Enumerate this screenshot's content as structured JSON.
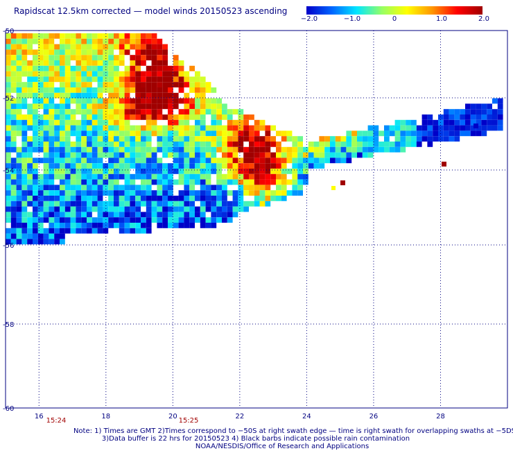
{
  "title": "Rapidscat 12.5km corrected — model winds 20150523 ascending",
  "colorbar": {
    "min": -2.0,
    "max": 2.0,
    "tick_labels": [
      "−2.0",
      "−1.0",
      "0",
      "1.0",
      "2.0"
    ],
    "colors": [
      "#0000c8",
      "#0064ff",
      "#00e6ff",
      "#96ff64",
      "#ffff00",
      "#ff9600",
      "#ff0000",
      "#a00000"
    ]
  },
  "map": {
    "lon_range": [
      15,
      30
    ],
    "lat_range": [
      -60,
      -50
    ],
    "lon_ticks": [
      "16",
      "18",
      "20",
      "22",
      "24",
      "26",
      "28"
    ],
    "lat_ticks": [
      "-50",
      "-52",
      "-54",
      "-56",
      "-58",
      "-60"
    ],
    "times": [
      "15:24",
      "15:25"
    ],
    "grid_color": "#000080",
    "time_color": "#a00000"
  },
  "notes": {
    "line1": "Note: 1) Times are GMT 2)Times correspond to −50S at right swath edge — time is right swath for overlapping swaths at −5DS",
    "line2": "3)Data buffer is 22 hrs for 20150523 4) Black barbs indicate possible rain contamination",
    "line3": "NOAA/NESDIS/Office of Research and Applications"
  }
}
